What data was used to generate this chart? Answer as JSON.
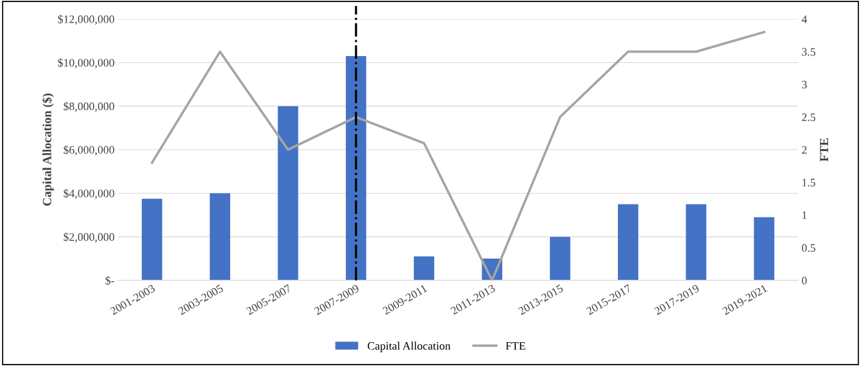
{
  "chart_data": {
    "type": "bar",
    "categories": [
      "2001-2003",
      "2003-2005",
      "2005-2007",
      "2007-2009",
      "2009-2011",
      "2011-2013",
      "2013-2015",
      "2015-2017",
      "2017-2019",
      "2019-2021"
    ],
    "series": [
      {
        "name": "Capital Allocation",
        "color": "#4472c4",
        "values": [
          3750000,
          4000000,
          8000000,
          10300000,
          1100000,
          1000000,
          2000000,
          3500000,
          3500000,
          2900000
        ]
      },
      {
        "name": "FTE",
        "type": "line",
        "axis": "y2",
        "color": "#a5a5a5",
        "values": [
          1.8,
          3.5,
          2.0,
          2.5,
          2.1,
          0,
          2.5,
          3.5,
          3.5,
          3.8
        ]
      }
    ],
    "ylabel": "Capital Allocation ($)",
    "y2label": "FTE",
    "ylim": [
      0,
      12000000
    ],
    "yticks": [
      {
        "value": 0,
        "label": "$-"
      },
      {
        "value": 2000000,
        "label": "$2,000,000"
      },
      {
        "value": 4000000,
        "label": "$4,000,000"
      },
      {
        "value": 6000000,
        "label": "$6,000,000"
      },
      {
        "value": 8000000,
        "label": "$8,000,000"
      },
      {
        "value": 10000000,
        "label": "$10,000,000"
      },
      {
        "value": 12000000,
        "label": "$12,000,000"
      }
    ],
    "y2lim": [
      0,
      4
    ],
    "y2ticks": [
      0,
      0.5,
      1,
      1.5,
      2,
      2.5,
      3,
      3.5,
      4
    ],
    "ref_lines": [
      {
        "axis": "x",
        "value": "2007-2009",
        "label": null,
        "color": "#000000",
        "line_style": "dashdot"
      }
    ],
    "grid": "y",
    "legend": "bottom",
    "marker": "none",
    "line_style": "solid"
  }
}
